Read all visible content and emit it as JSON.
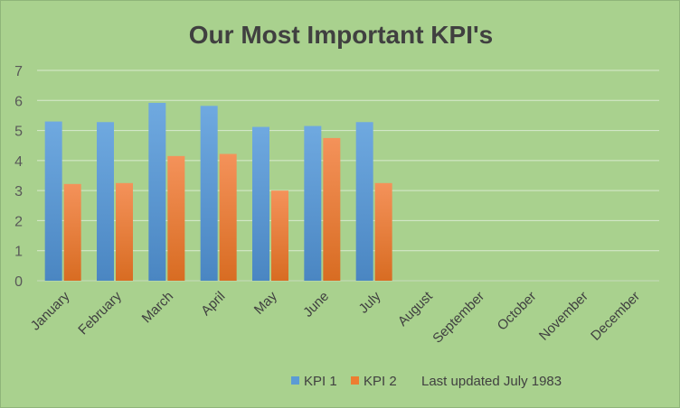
{
  "chart_data": {
    "type": "bar",
    "title": "Our Most Important KPI's",
    "categories": [
      "January",
      "February",
      "March",
      "April",
      "May",
      "June",
      "July",
      "August",
      "September",
      "October",
      "November",
      "December"
    ],
    "series": [
      {
        "name": "KPI 1",
        "color": "#5b9bd5",
        "values": [
          5.3,
          5.28,
          5.92,
          5.82,
          5.12,
          5.15,
          5.28,
          null,
          null,
          null,
          null,
          null
        ]
      },
      {
        "name": "KPI 2",
        "color": "#ed7d31",
        "values": [
          3.22,
          3.25,
          4.15,
          4.22,
          3.0,
          4.75,
          3.25,
          null,
          null,
          null,
          null,
          null
        ]
      }
    ],
    "ylim": [
      0,
      7
    ],
    "yticks": [
      "0",
      "1",
      "2",
      "3",
      "4",
      "5",
      "6",
      "7"
    ],
    "grid": true,
    "legend": "bottom",
    "annotation": "Last updated July 1983",
    "colors": {
      "background": "#a9d18e",
      "gridline": "#d9e9cf"
    }
  }
}
